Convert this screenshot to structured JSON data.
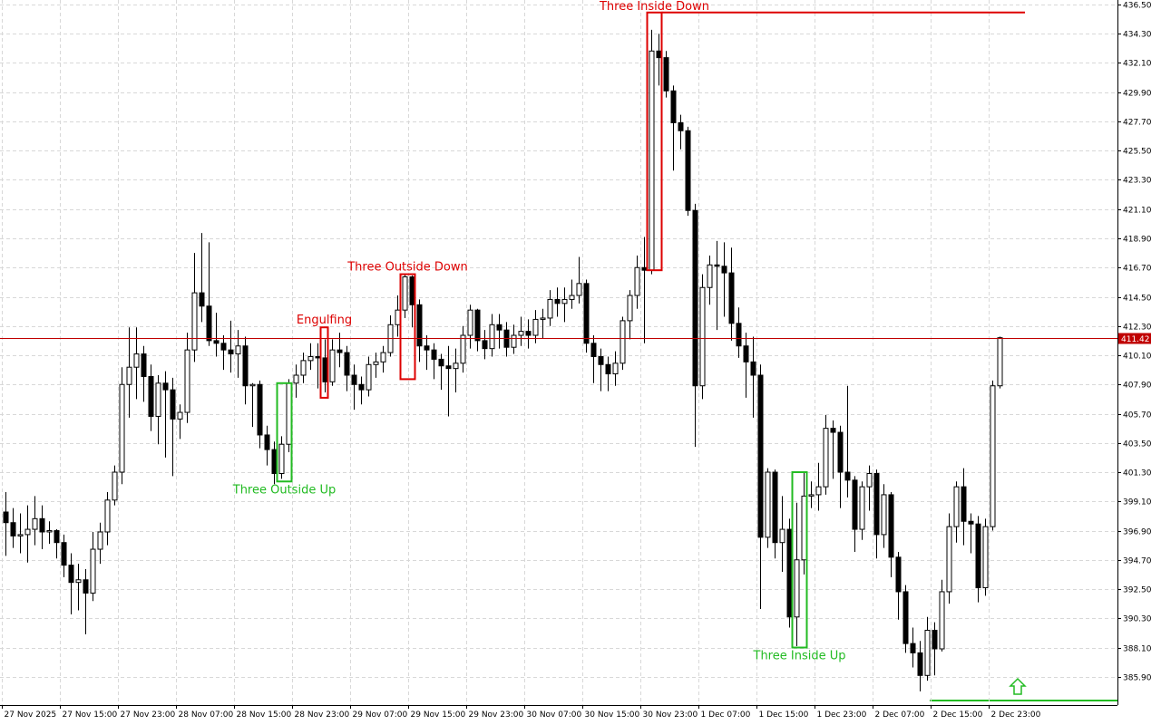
{
  "chart_data": {
    "type": "candlestick",
    "categories": [
      "27 Nov 2025",
      null,
      null,
      null,
      null,
      null,
      null,
      null,
      "27 Nov 15:00",
      null,
      null,
      null,
      null,
      null,
      null,
      null,
      "27 Nov 23:00",
      null,
      null,
      null,
      null,
      null,
      null,
      null,
      "28 Nov 07:00",
      null,
      null,
      null,
      null,
      null,
      null,
      null,
      "28 Nov 15:00",
      null,
      null,
      null,
      null,
      null,
      null,
      null,
      "28 Nov 23:00",
      null,
      null,
      null,
      null,
      null,
      null,
      null,
      "29 Nov 07:00",
      null,
      null,
      null,
      null,
      null,
      null,
      null,
      "29 Nov 15:00",
      null,
      null,
      null,
      null,
      null,
      null,
      null,
      "29 Nov 23:00",
      null,
      null,
      null,
      null,
      null,
      null,
      null,
      "30 Nov 07:00",
      null,
      null,
      null,
      null,
      null,
      null,
      null,
      "30 Nov 15:00",
      null,
      null,
      null,
      null,
      null,
      null,
      null,
      "30 Nov 23:00",
      null,
      null,
      null,
      null,
      null,
      null,
      null,
      "1 Dec 07:00",
      null,
      null,
      null,
      null,
      null,
      null,
      null,
      "1 Dec 15:00",
      null,
      null,
      null,
      null,
      null,
      null,
      null,
      "1 Dec 23:00",
      null,
      null,
      null,
      null,
      null,
      null,
      null,
      "2 Dec 07:00",
      null,
      null,
      null,
      null,
      null,
      null,
      null,
      "2 Dec 15:00",
      null,
      null,
      null,
      null,
      null,
      null,
      null,
      "2 Dec 23:00",
      null
    ],
    "ohlc": [
      [
        398.3,
        399.8,
        395.0,
        397.5
      ],
      [
        397.5,
        398.6,
        395.6,
        396.5
      ],
      [
        396.5,
        398.2,
        395.2,
        396.6
      ],
      [
        396.6,
        398.8,
        394.5,
        397.0
      ],
      [
        397.0,
        399.5,
        395.8,
        397.8
      ],
      [
        397.8,
        398.8,
        395.5,
        396.8
      ],
      [
        396.8,
        397.6,
        395.9,
        396.9
      ],
      [
        396.9,
        397.0,
        394.8,
        396.0
      ],
      [
        396.0,
        396.6,
        393.4,
        394.3
      ],
      [
        394.3,
        395.2,
        390.6,
        393.0
      ],
      [
        393.0,
        394.4,
        390.9,
        393.2
      ],
      [
        393.2,
        394.0,
        389.1,
        392.2
      ],
      [
        392.2,
        396.8,
        391.6,
        395.5
      ],
      [
        395.5,
        397.5,
        394.4,
        396.8
      ],
      [
        396.8,
        399.8,
        395.8,
        399.2
      ],
      [
        399.2,
        401.8,
        398.8,
        401.3
      ],
      [
        401.3,
        409.2,
        400.4,
        407.9
      ],
      [
        407.9,
        412.2,
        405.4,
        409.2
      ],
      [
        409.2,
        412.2,
        406.8,
        410.2
      ],
      [
        410.2,
        410.8,
        406.6,
        408.5
      ],
      [
        408.5,
        409.4,
        404.4,
        405.5
      ],
      [
        405.5,
        408.6,
        403.4,
        408.0
      ],
      [
        408.0,
        408.9,
        402.4,
        407.5
      ],
      [
        407.5,
        408.4,
        401.0,
        405.3
      ],
      [
        405.3,
        406.4,
        403.8,
        405.8
      ],
      [
        405.8,
        411.8,
        405.0,
        410.5
      ],
      [
        410.5,
        417.8,
        409.6,
        414.8
      ],
      [
        414.8,
        419.3,
        412.6,
        413.8
      ],
      [
        413.8,
        418.6,
        410.8,
        411.2
      ],
      [
        411.2,
        413.3,
        410.0,
        411.0
      ],
      [
        411.0,
        411.6,
        409.0,
        410.5
      ],
      [
        410.5,
        412.7,
        408.8,
        410.2
      ],
      [
        410.2,
        412.0,
        408.4,
        410.8
      ],
      [
        410.8,
        411.5,
        406.4,
        407.8
      ],
      [
        407.8,
        408.0,
        404.7,
        407.9
      ],
      [
        407.9,
        408.2,
        403.1,
        404.1
      ],
      [
        404.1,
        404.8,
        401.8,
        403.0
      ],
      [
        403.0,
        403.6,
        400.4,
        401.2
      ],
      [
        401.2,
        404.0,
        400.8,
        403.4
      ],
      [
        403.4,
        408.3,
        402.8,
        408.0
      ],
      [
        408.0,
        409.4,
        406.9,
        408.6
      ],
      [
        408.6,
        410.3,
        408.0,
        409.7
      ],
      [
        409.7,
        411.0,
        409.0,
        410.0
      ],
      [
        410.0,
        411.0,
        407.6,
        409.9
      ],
      [
        409.9,
        411.3,
        407.3,
        408.1
      ],
      [
        408.1,
        411.3,
        407.8,
        410.5
      ],
      [
        410.5,
        411.8,
        409.2,
        410.3
      ],
      [
        410.3,
        410.8,
        407.4,
        408.6
      ],
      [
        408.6,
        409.4,
        406.0,
        407.9
      ],
      [
        407.9,
        408.5,
        406.4,
        407.5
      ],
      [
        407.5,
        410.0,
        407.0,
        409.4
      ],
      [
        409.4,
        410.3,
        408.4,
        409.6
      ],
      [
        409.6,
        410.8,
        408.8,
        410.3
      ],
      [
        410.3,
        413.1,
        410.0,
        412.4
      ],
      [
        412.4,
        414.6,
        411.5,
        413.5
      ],
      [
        413.5,
        416.2,
        412.9,
        416.0
      ],
      [
        416.0,
        416.1,
        412.2,
        413.9
      ],
      [
        413.9,
        414.3,
        409.6,
        410.8
      ],
      [
        410.8,
        411.6,
        409.0,
        410.5
      ],
      [
        410.5,
        411.0,
        408.3,
        409.8
      ],
      [
        409.8,
        410.2,
        407.5,
        409.3
      ],
      [
        409.3,
        410.8,
        405.5,
        409.1
      ],
      [
        409.1,
        410.6,
        407.3,
        409.5
      ],
      [
        409.5,
        412.3,
        408.8,
        411.6
      ],
      [
        411.6,
        413.9,
        410.6,
        413.5
      ],
      [
        413.5,
        413.6,
        410.4,
        411.2
      ],
      [
        411.2,
        412.0,
        409.8,
        410.6
      ],
      [
        410.6,
        413.2,
        410.0,
        412.4
      ],
      [
        412.4,
        413.2,
        410.6,
        412.0
      ],
      [
        412.0,
        412.6,
        410.0,
        410.7
      ],
      [
        410.7,
        412.4,
        410.2,
        411.6
      ],
      [
        411.6,
        413.0,
        410.8,
        411.9
      ],
      [
        411.9,
        412.8,
        410.6,
        411.6
      ],
      [
        411.6,
        413.5,
        411.0,
        412.8
      ],
      [
        412.8,
        413.6,
        411.4,
        412.9
      ],
      [
        412.9,
        415.0,
        412.3,
        414.3
      ],
      [
        414.3,
        415.2,
        413.0,
        414.0
      ],
      [
        414.0,
        415.2,
        412.6,
        414.3
      ],
      [
        414.3,
        415.8,
        413.6,
        414.6
      ],
      [
        414.6,
        417.5,
        414.0,
        415.5
      ],
      [
        415.5,
        415.8,
        410.3,
        411.0
      ],
      [
        411.0,
        411.6,
        408.0,
        410.0
      ],
      [
        410.0,
        410.6,
        407.4,
        409.4
      ],
      [
        409.4,
        410.0,
        407.4,
        408.7
      ],
      [
        408.7,
        410.4,
        407.8,
        409.5
      ],
      [
        409.5,
        413.0,
        409.0,
        412.7
      ],
      [
        412.7,
        415.0,
        411.3,
        414.6
      ],
      [
        414.6,
        417.6,
        413.6,
        416.7
      ],
      [
        416.7,
        419.0,
        411.0,
        416.5
      ],
      [
        416.5,
        434.6,
        416.2,
        433.0
      ],
      [
        433.0,
        434.3,
        430.4,
        432.5
      ],
      [
        432.5,
        433.0,
        429.5,
        430.0
      ],
      [
        430.0,
        430.4,
        424.0,
        427.6
      ],
      [
        427.6,
        428.2,
        425.6,
        427.0
      ],
      [
        427.0,
        427.3,
        420.6,
        421.0
      ],
      [
        421.0,
        421.5,
        403.2,
        407.8
      ],
      [
        407.8,
        416.2,
        406.8,
        415.2
      ],
      [
        415.2,
        417.6,
        413.9,
        416.9
      ],
      [
        416.9,
        418.7,
        412.0,
        416.8
      ],
      [
        416.8,
        418.6,
        413.0,
        416.3
      ],
      [
        416.3,
        418.2,
        411.2,
        412.5
      ],
      [
        412.5,
        413.7,
        409.9,
        410.8
      ],
      [
        410.8,
        411.8,
        406.9,
        409.6
      ],
      [
        409.6,
        411.5,
        405.4,
        408.6
      ],
      [
        408.6,
        409.4,
        391.0,
        396.4
      ],
      [
        396.4,
        401.6,
        395.6,
        401.3
      ],
      [
        401.3,
        401.5,
        394.8,
        396.0
      ],
      [
        396.0,
        399.5,
        393.8,
        397.0
      ],
      [
        397.0,
        397.8,
        389.6,
        390.4
      ],
      [
        390.4,
        399.0,
        388.2,
        394.7
      ],
      [
        394.7,
        401.3,
        393.6,
        399.5
      ],
      [
        399.5,
        400.6,
        398.6,
        399.6
      ],
      [
        399.6,
        402.0,
        398.4,
        400.2
      ],
      [
        400.2,
        405.6,
        399.6,
        404.6
      ],
      [
        404.6,
        405.2,
        400.8,
        404.3
      ],
      [
        404.3,
        404.8,
        398.6,
        401.3
      ],
      [
        401.3,
        407.8,
        399.4,
        400.7
      ],
      [
        400.7,
        401.0,
        395.3,
        397.0
      ],
      [
        397.0,
        400.6,
        396.2,
        400.2
      ],
      [
        400.2,
        401.8,
        398.4,
        401.2
      ],
      [
        401.2,
        401.5,
        394.8,
        396.6
      ],
      [
        396.6,
        400.4,
        395.6,
        399.6
      ],
      [
        399.6,
        399.8,
        393.4,
        394.9
      ],
      [
        394.9,
        395.3,
        390.2,
        392.3
      ],
      [
        392.3,
        392.8,
        387.7,
        388.4
      ],
      [
        388.4,
        389.6,
        386.6,
        387.7
      ],
      [
        387.7,
        388.6,
        384.8,
        386.0
      ],
      [
        386.0,
        390.4,
        385.6,
        389.4
      ],
      [
        389.4,
        390.0,
        386.0,
        388.0
      ],
      [
        388.0,
        393.2,
        387.8,
        392.3
      ],
      [
        392.3,
        398.2,
        391.4,
        397.2
      ],
      [
        397.2,
        400.6,
        396.0,
        400.2
      ],
      [
        400.2,
        401.6,
        395.8,
        397.6
      ],
      [
        397.6,
        398.2,
        395.2,
        397.4
      ],
      [
        397.4,
        398.0,
        391.5,
        392.6
      ],
      [
        392.6,
        397.8,
        392.0,
        397.2
      ],
      [
        397.2,
        408.2,
        396.9,
        407.8
      ],
      [
        407.8,
        411.5,
        407.6,
        411.42
      ]
    ],
    "ylim": [
      383.77,
      436.84
    ],
    "yticks": [
      {
        "value": 436.5,
        "label": "436.50"
      },
      {
        "value": 434.3,
        "label": "434.30"
      },
      {
        "value": 432.1,
        "label": "432.10"
      },
      {
        "value": 429.9,
        "label": "429.90"
      },
      {
        "value": 427.7,
        "label": "427.70"
      },
      {
        "value": 425.5,
        "label": "425.50"
      },
      {
        "value": 423.3,
        "label": "423.30"
      },
      {
        "value": 421.1,
        "label": "421.10"
      },
      {
        "value": 418.9,
        "label": "418.90"
      },
      {
        "value": 416.7,
        "label": "416.70"
      },
      {
        "value": 414.5,
        "label": "414.50"
      },
      {
        "value": 412.3,
        "label": "412.30"
      },
      {
        "value": 410.1,
        "label": "410.10"
      },
      {
        "value": 407.9,
        "label": "407.90"
      },
      {
        "value": 405.7,
        "label": "405.70"
      },
      {
        "value": 403.5,
        "label": "403.50"
      },
      {
        "value": 401.3,
        "label": "401.30"
      },
      {
        "value": 399.1,
        "label": "399.10"
      },
      {
        "value": 396.9,
        "label": "396.90"
      },
      {
        "value": 394.7,
        "label": "394.70"
      },
      {
        "value": 392.5,
        "label": "392.50"
      },
      {
        "value": 390.3,
        "label": "390.30"
      },
      {
        "value": 388.1,
        "label": "388.10"
      },
      {
        "value": 385.9,
        "label": "385.90"
      }
    ],
    "grid": true,
    "up_color": "#ffffff",
    "down_color": "#000000",
    "last_price": 411.42,
    "last_price_color": "#c00000",
    "annotations": [
      {
        "text": "Three Inside Down",
        "color": "#dd0000",
        "from": 89,
        "to": 90,
        "low": 416.5,
        "high": 435.9,
        "position": "above",
        "extend": true
      },
      {
        "text": "Three Outside Down",
        "color": "#dd0000",
        "from": 55,
        "to": 56,
        "low": 408.3,
        "high": 416.2,
        "position": "above",
        "extend": false
      },
      {
        "text": "Engulfing",
        "color": "#dd0000",
        "from": 44,
        "to": 44,
        "low": 406.9,
        "high": 412.2,
        "position": "above",
        "extend": false
      },
      {
        "text": "Three Outside Up",
        "color": "#22bb22",
        "from": 38,
        "to": 39,
        "low": 400.6,
        "high": 408.0,
        "position": "below",
        "extend": false
      },
      {
        "text": "Three Inside Up",
        "color": "#22bb22",
        "from": 109,
        "to": 110,
        "low": 388.1,
        "high": 401.3,
        "position": "below",
        "extend": false
      }
    ]
  }
}
